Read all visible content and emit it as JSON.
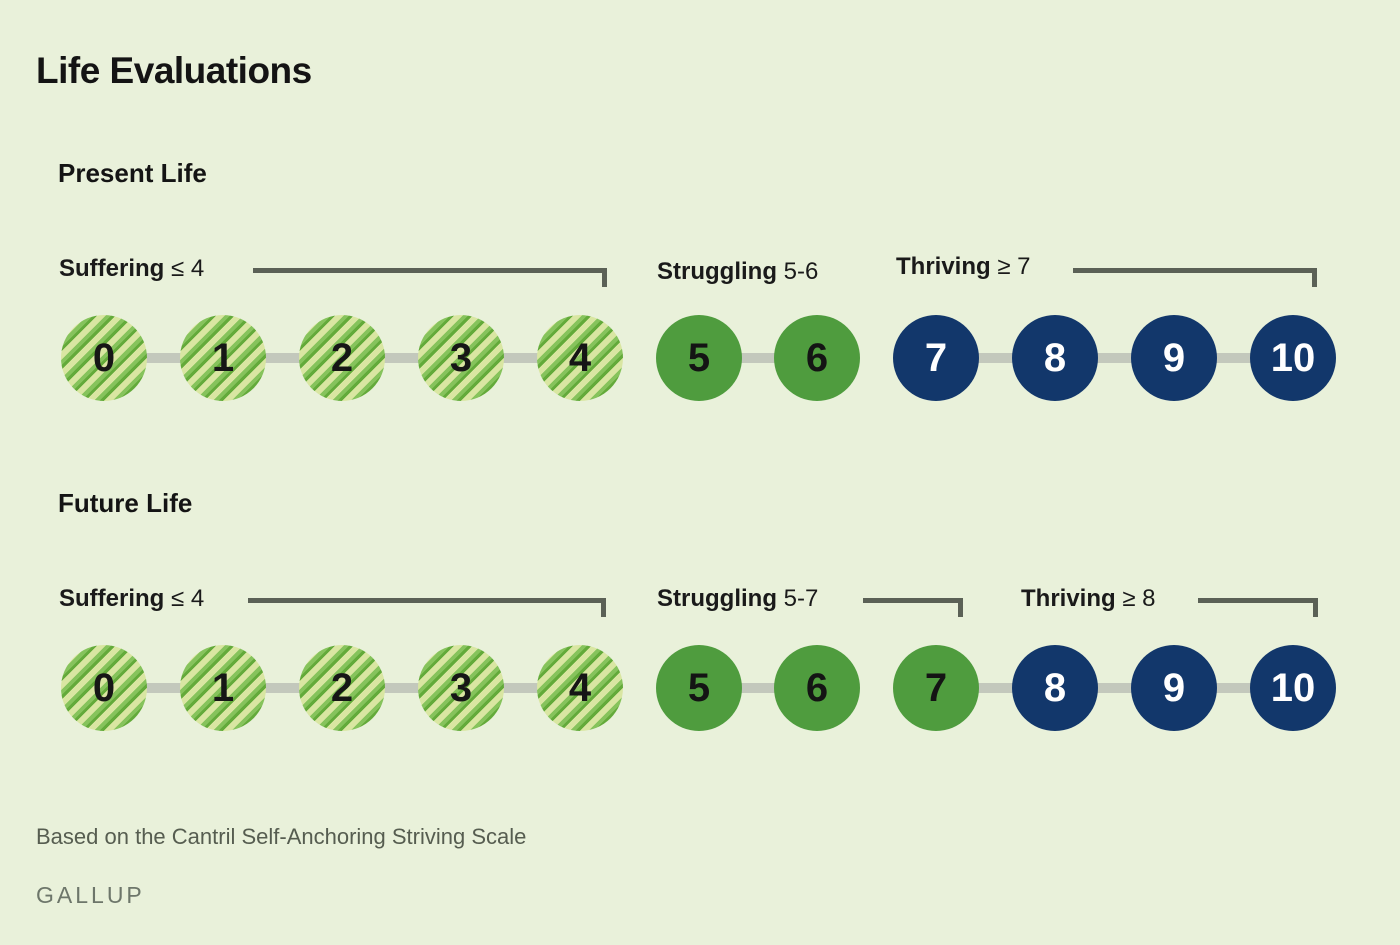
{
  "title": "Life Evaluations",
  "footnote": "Based on the Cantril Self-Anchoring Striving Scale",
  "logo": "GALLUP",
  "colors": {
    "background": "#e9f1da",
    "suffering_stripe_light": "#d9e6a2",
    "suffering_stripe_green": "#86c35c",
    "suffering_stripe_dark": "#63aa3a",
    "struggling_green": "#4f9c3e",
    "thriving_navy": "#12376b",
    "connector_gray": "#c3c8bc",
    "bracket_gray": "#5b6156",
    "text_black": "#161616",
    "footnote_gray": "#565d50",
    "logo_gray": "#6d766a"
  },
  "sections": [
    {
      "heading": "Present Life",
      "labels": {
        "suffering": {
          "word": "Suffering",
          "range": "≤ 4"
        },
        "struggling": {
          "word": "Struggling",
          "range": "5-6"
        },
        "thriving": {
          "word": "Thriving",
          "range": "≥ 7"
        }
      },
      "scale": [
        {
          "value": "0",
          "category": "suffering",
          "connect_right": true
        },
        {
          "value": "1",
          "category": "suffering",
          "connect_right": true
        },
        {
          "value": "2",
          "category": "suffering",
          "connect_right": true
        },
        {
          "value": "3",
          "category": "suffering",
          "connect_right": true
        },
        {
          "value": "4",
          "category": "suffering",
          "connect_right": false
        },
        {
          "value": "5",
          "category": "struggling",
          "connect_right": true
        },
        {
          "value": "6",
          "category": "struggling",
          "connect_right": false
        },
        {
          "value": "7",
          "category": "thriving",
          "connect_right": true
        },
        {
          "value": "8",
          "category": "thriving",
          "connect_right": true
        },
        {
          "value": "9",
          "category": "thriving",
          "connect_right": true
        },
        {
          "value": "10",
          "category": "thriving",
          "connect_right": false
        }
      ]
    },
    {
      "heading": "Future Life",
      "labels": {
        "suffering": {
          "word": "Suffering",
          "range": "≤ 4"
        },
        "struggling": {
          "word": "Struggling",
          "range": "5-7"
        },
        "thriving": {
          "word": "Thriving",
          "range": "≥ 8"
        }
      },
      "scale": [
        {
          "value": "0",
          "category": "suffering",
          "connect_right": true
        },
        {
          "value": "1",
          "category": "suffering",
          "connect_right": true
        },
        {
          "value": "2",
          "category": "suffering",
          "connect_right": true
        },
        {
          "value": "3",
          "category": "suffering",
          "connect_right": true
        },
        {
          "value": "4",
          "category": "suffering",
          "connect_right": false
        },
        {
          "value": "5",
          "category": "struggling",
          "connect_right": true
        },
        {
          "value": "6",
          "category": "struggling",
          "connect_right": false
        },
        {
          "value": "7",
          "category": "struggling",
          "connect_right": true
        },
        {
          "value": "8",
          "category": "thriving",
          "connect_right": true
        },
        {
          "value": "9",
          "category": "thriving",
          "connect_right": true
        },
        {
          "value": "10",
          "category": "thriving",
          "connect_right": false
        }
      ]
    }
  ]
}
